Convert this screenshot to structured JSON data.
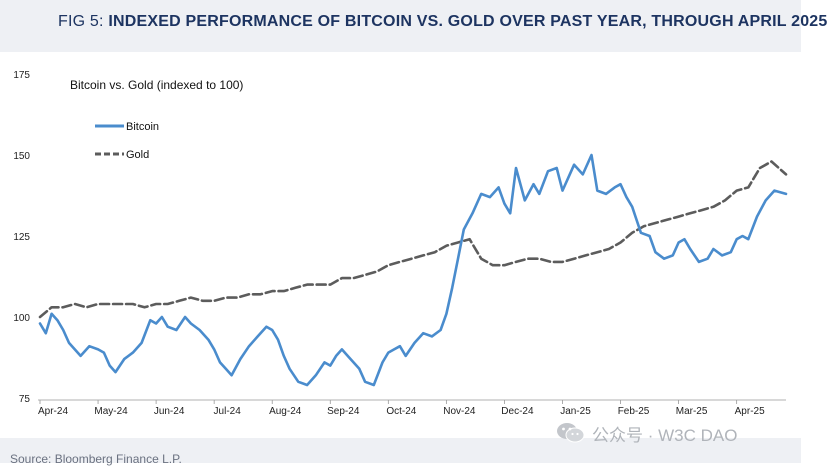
{
  "header": {
    "fig_label": "FIG 5:",
    "title": "INDEXED PERFORMANCE OF BITCOIN VS. GOLD OVER PAST YEAR, THROUGH APRIL 2025"
  },
  "footer": {
    "source": "Source: Bloomberg Finance L.P.",
    "watermark": "公众号 · W3C DAO"
  },
  "colors": {
    "bitcoin": "#4a8ccd",
    "gold": "#5c5c5c",
    "header_bg": "#eef0f4",
    "title_text": "#1d3461"
  },
  "chart_data": {
    "type": "line",
    "title": "Bitcoin vs. Gold (indexed to 100)",
    "ylim": [
      75,
      175
    ],
    "yticks": [
      75,
      100,
      125,
      150,
      175
    ],
    "x_ticks": [
      "Apr-24",
      "May-24",
      "Jun-24",
      "Jul-24",
      "Aug-24",
      "Sep-24",
      "Oct-24",
      "Nov-24",
      "Dec-24",
      "Jan-25",
      "Feb-25",
      "Mar-25",
      "Apr-25"
    ],
    "x_domain": [
      0,
      12.85
    ],
    "legend_placement": "top-left",
    "grid": false,
    "series": [
      {
        "name": "Bitcoin",
        "color": "#4a8ccd",
        "x": [
          0,
          0.1,
          0.2,
          0.3,
          0.4,
          0.5,
          0.6,
          0.7,
          0.85,
          1,
          1.1,
          1.2,
          1.3,
          1.45,
          1.6,
          1.75,
          1.9,
          2,
          2.1,
          2.2,
          2.35,
          2.5,
          2.6,
          2.75,
          2.9,
          3,
          3.1,
          3.2,
          3.3,
          3.45,
          3.6,
          3.75,
          3.9,
          4,
          4.1,
          4.2,
          4.3,
          4.45,
          4.6,
          4.75,
          4.9,
          5,
          5.1,
          5.2,
          5.35,
          5.5,
          5.6,
          5.75,
          5.9,
          6,
          6.1,
          6.2,
          6.3,
          6.45,
          6.6,
          6.75,
          6.9,
          7,
          7.1,
          7.2,
          7.3,
          7.45,
          7.6,
          7.75,
          7.9,
          8,
          8.1,
          8.2,
          8.35,
          8.5,
          8.6,
          8.75,
          8.9,
          9,
          9.1,
          9.2,
          9.35,
          9.5,
          9.6,
          9.75,
          9.9,
          10,
          10.1,
          10.2,
          10.35,
          10.5,
          10.6,
          10.75,
          10.9,
          11,
          11.1,
          11.2,
          11.35,
          11.5,
          11.6,
          11.75,
          11.9,
          12,
          12.1,
          12.2,
          12.35,
          12.5,
          12.65,
          12.85
        ],
        "values": [
          98,
          95,
          101,
          99,
          96,
          92,
          90,
          88,
          91,
          90,
          89,
          85,
          83,
          87,
          89,
          92,
          99,
          98,
          100,
          97,
          96,
          100,
          98,
          96,
          93,
          90,
          86,
          84,
          82,
          87,
          91,
          94,
          97,
          96,
          93,
          88,
          84,
          80,
          79,
          82,
          86,
          85,
          88,
          90,
          87,
          84,
          80,
          79,
          86,
          89,
          90,
          91,
          88,
          92,
          95,
          94,
          96,
          101,
          109,
          118,
          127,
          132,
          138,
          137,
          140,
          135,
          132,
          146,
          136,
          141,
          138,
          145,
          146,
          139,
          143,
          147,
          144,
          150,
          139,
          138,
          140,
          141,
          137,
          134,
          126,
          125,
          120,
          118,
          119,
          123,
          124,
          121,
          117,
          118,
          121,
          119,
          120,
          124,
          125,
          124,
          131,
          136,
          139,
          138
        ]
      },
      {
        "name": "Gold",
        "color": "#5c5c5c",
        "x": [
          0,
          0.2,
          0.4,
          0.6,
          0.8,
          1,
          1.2,
          1.4,
          1.6,
          1.8,
          2,
          2.2,
          2.4,
          2.6,
          2.8,
          3,
          3.2,
          3.4,
          3.6,
          3.8,
          4,
          4.2,
          4.4,
          4.6,
          4.8,
          5,
          5.2,
          5.4,
          5.6,
          5.8,
          6,
          6.2,
          6.4,
          6.6,
          6.8,
          7,
          7.2,
          7.4,
          7.6,
          7.8,
          8,
          8.2,
          8.4,
          8.6,
          8.8,
          9,
          9.2,
          9.4,
          9.6,
          9.8,
          10,
          10.2,
          10.4,
          10.6,
          10.8,
          11,
          11.2,
          11.4,
          11.6,
          11.8,
          12,
          12.2,
          12.4,
          12.6,
          12.85
        ],
        "values": [
          100,
          103,
          103,
          104,
          103,
          104,
          104,
          104,
          104,
          103,
          104,
          104,
          105,
          106,
          105,
          105,
          106,
          106,
          107,
          107,
          108,
          108,
          109,
          110,
          110,
          110,
          112,
          112,
          113,
          114,
          116,
          117,
          118,
          119,
          120,
          122,
          123,
          124,
          118,
          116,
          116,
          117,
          118,
          118,
          117,
          117,
          118,
          119,
          120,
          121,
          123,
          126,
          128,
          129,
          130,
          131,
          132,
          133,
          134,
          136,
          139,
          140,
          146,
          148,
          144
        ]
      }
    ]
  }
}
